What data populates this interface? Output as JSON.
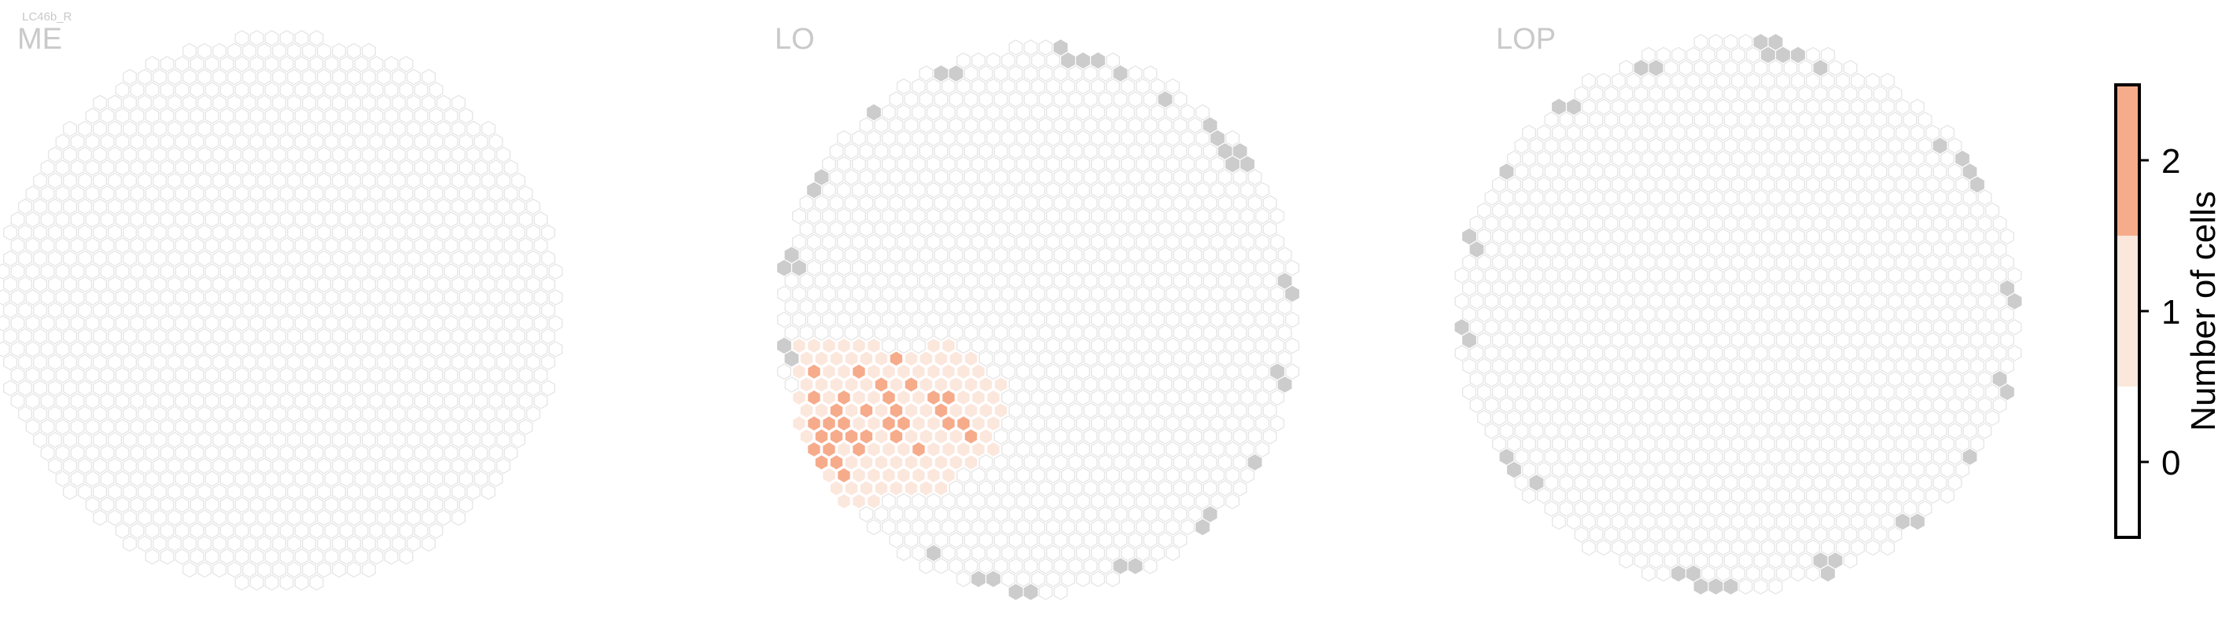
{
  "figure": {
    "cell_type": "LC46b_R",
    "colorbar": {
      "label": "Number of cells",
      "ticks": [
        "0",
        "1",
        "2"
      ]
    }
  },
  "colors": {
    "hex_edge": "#e3e3e3",
    "hex_empty": "#ffffff",
    "hex_outside_edge": "#cccccc",
    "level_0": "#ffffff",
    "level_1": "#fce7dd",
    "level_2": "#f6ab8b",
    "panel_title": "#c9c9c9"
  },
  "chart_data": [
    {
      "type": "heatmap",
      "title": "ME",
      "value_range": [
        0,
        2
      ],
      "counts": []
    },
    {
      "type": "heatmap",
      "title": "LO",
      "value_range": [
        0,
        2
      ],
      "counts": [
        {
          "row": 2,
          "values": [
            1,
            1,
            1,
            1,
            1,
            1,
            0,
            0,
            0,
            1,
            1,
            0,
            0
          ]
        },
        {
          "row": 3,
          "values": [
            1,
            1,
            1,
            1,
            1,
            1,
            2,
            1,
            1,
            1,
            1,
            1,
            0,
            0
          ]
        },
        {
          "row": 4,
          "values": [
            1,
            2,
            1,
            1,
            2,
            1,
            1,
            1,
            1,
            1,
            1,
            1,
            1,
            0
          ]
        },
        {
          "row": 5,
          "values": [
            1,
            1,
            1,
            1,
            1,
            2,
            1,
            2,
            1,
            1,
            1,
            1,
            1,
            1
          ]
        },
        {
          "row": 6,
          "values": [
            1,
            2,
            1,
            2,
            1,
            1,
            2,
            1,
            1,
            2,
            2,
            1,
            1,
            1,
            0
          ]
        },
        {
          "row": 7,
          "values": [
            1,
            1,
            2,
            1,
            2,
            1,
            2,
            1,
            1,
            2,
            1,
            1,
            1,
            1
          ]
        },
        {
          "row": 8,
          "values": [
            1,
            2,
            2,
            2,
            1,
            1,
            2,
            2,
            1,
            1,
            2,
            2,
            1,
            1
          ]
        },
        {
          "row": 9,
          "values": [
            1,
            2,
            2,
            2,
            2,
            1,
            2,
            1,
            1,
            1,
            1,
            2,
            1
          ]
        },
        {
          "row": 10,
          "values": [
            1,
            2,
            2,
            1,
            2,
            1,
            1,
            1,
            2,
            1,
            1,
            1,
            1,
            1
          ]
        },
        {
          "row": 11,
          "values": [
            1,
            2,
            2,
            1,
            1,
            1,
            1,
            1,
            1,
            1,
            1,
            1
          ]
        },
        {
          "row": 12,
          "values": [
            1,
            1,
            1,
            2,
            1,
            1,
            1,
            1,
            1,
            1,
            1
          ]
        },
        {
          "row": 13,
          "values": [
            1,
            1,
            1,
            1,
            1,
            1,
            1,
            1,
            1,
            1
          ]
        },
        {
          "row": 14,
          "values": [
            1,
            1,
            1,
            1,
            1,
            1
          ]
        }
      ]
    },
    {
      "type": "heatmap",
      "title": "LOP",
      "value_range": [
        0,
        2
      ],
      "counts": []
    }
  ]
}
